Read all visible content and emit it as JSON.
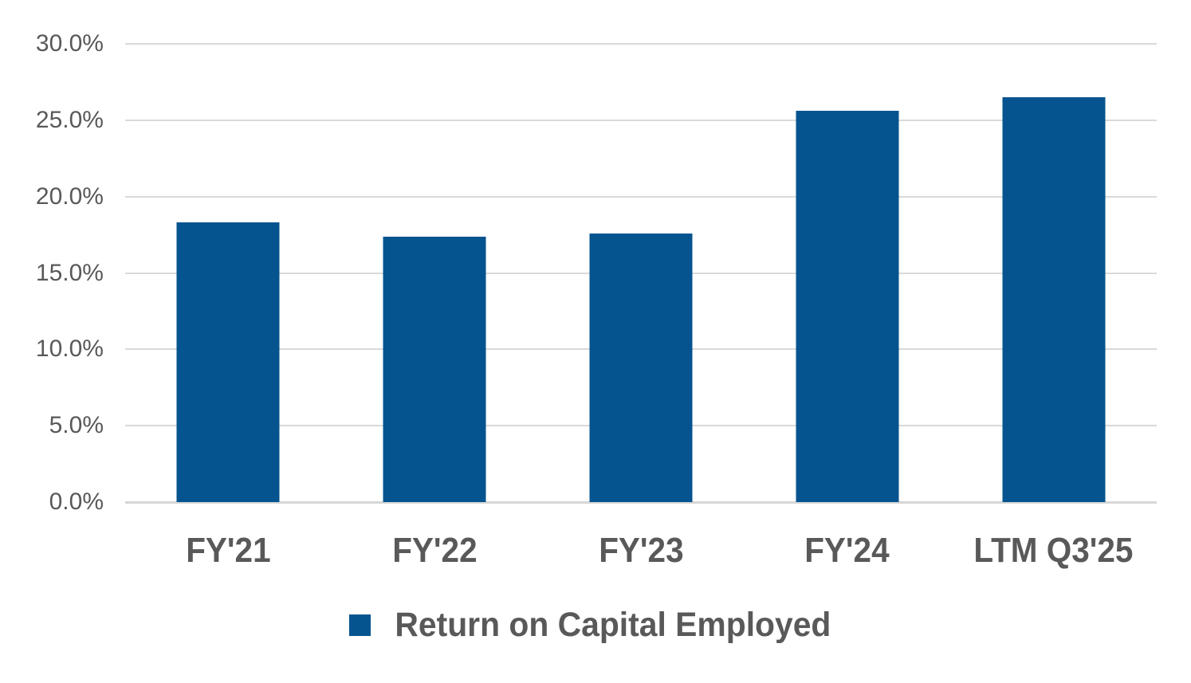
{
  "chart_data": {
    "type": "bar",
    "title": "",
    "categories": [
      "FY'21",
      "FY'22",
      "FY'23",
      "FY'24",
      "LTM Q3'25"
    ],
    "series": [
      {
        "name": "Return on Capital Employed",
        "values": [
          18.3,
          17.4,
          17.6,
          25.6,
          26.5
        ]
      }
    ],
    "xlabel": "",
    "ylabel": "",
    "ylim": [
      0,
      30
    ],
    "yticks": [
      30,
      25,
      20,
      15,
      10,
      5,
      0
    ],
    "ytick_labels": [
      "30.0%",
      "25.0%",
      "20.0%",
      "15.0%",
      "10.0%",
      "5.0%",
      "0.0%"
    ],
    "grid": true,
    "legend_position": "bottom",
    "colors": {
      "bar": "#05548F",
      "text": "#595959",
      "gridline": "#D9D9D9",
      "axis_line": "#D7D7D7",
      "background": "#FFFFFF"
    }
  },
  "legend": {
    "label": "Return on Capital Employed"
  }
}
